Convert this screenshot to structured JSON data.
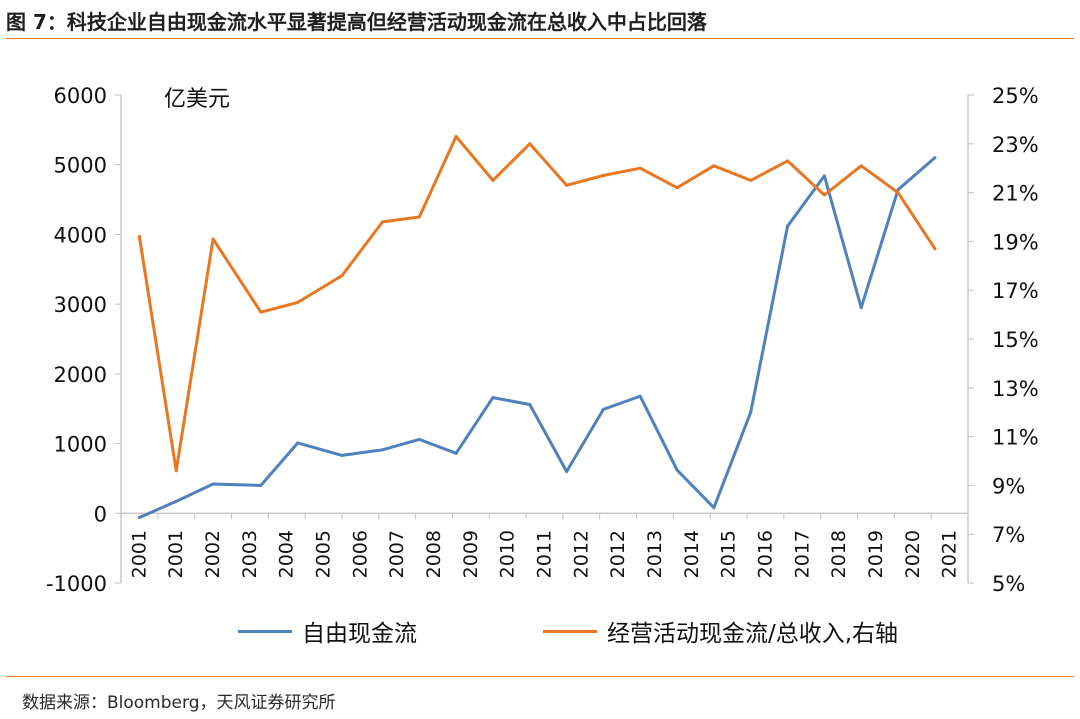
{
  "figure": {
    "title": "图 7：科技企业自由现金流水平显著提高但经营活动现金流在总收入中占比回落",
    "source": "数据来源：Bloomberg，天风证券研究所"
  },
  "chart_data": {
    "type": "line",
    "title": "",
    "unit_label": "亿美元",
    "xlabel": "",
    "ylabel": "",
    "categories": [
      "2001",
      "2001",
      "2002",
      "2003",
      "2004",
      "2005",
      "2006",
      "2007",
      "2008",
      "2009",
      "2010",
      "2011",
      "2012",
      "2012",
      "2013",
      "2014",
      "2015",
      "2016",
      "2017",
      "2018",
      "2019",
      "2020",
      "2021"
    ],
    "y_left": {
      "lim": [
        -1000,
        6000
      ],
      "ticks": [
        -1000,
        0,
        1000,
        2000,
        3000,
        4000,
        5000,
        6000
      ]
    },
    "y_right": {
      "lim": [
        5,
        25
      ],
      "ticks": [
        5,
        7,
        9,
        11,
        13,
        15,
        17,
        19,
        21,
        23,
        25
      ],
      "tick_suffix": "%"
    },
    "series": [
      {
        "name": "自由现金流",
        "axis": "left",
        "color": "#4f81bd",
        "points": [
          [
            0.0,
            -60
          ],
          [
            1.0,
            170
          ],
          [
            2.0,
            420
          ],
          [
            3.3,
            400
          ],
          [
            4.3,
            1010
          ],
          [
            5.5,
            830
          ],
          [
            6.6,
            910
          ],
          [
            7.6,
            1060
          ],
          [
            8.6,
            860
          ],
          [
            9.6,
            1660
          ],
          [
            10.6,
            1560
          ],
          [
            11.6,
            600
          ],
          [
            12.6,
            1490
          ],
          [
            13.6,
            1680
          ],
          [
            14.6,
            620
          ],
          [
            15.6,
            80
          ],
          [
            16.6,
            1450
          ],
          [
            17.6,
            4120
          ],
          [
            18.6,
            4840
          ],
          [
            19.6,
            2950
          ],
          [
            20.6,
            4640
          ],
          [
            21.6,
            5100
          ]
        ]
      },
      {
        "name": "经营活动现金流/总收入,右轴",
        "axis": "right",
        "color": "#e87722",
        "points": [
          [
            0.0,
            19.2
          ],
          [
            1.0,
            9.6
          ],
          [
            2.0,
            19.1
          ],
          [
            3.3,
            16.1
          ],
          [
            4.3,
            16.5
          ],
          [
            5.5,
            17.6
          ],
          [
            6.6,
            19.8
          ],
          [
            7.6,
            20.0
          ],
          [
            8.6,
            23.3
          ],
          [
            9.6,
            21.5
          ],
          [
            10.6,
            23.0
          ],
          [
            11.6,
            21.3
          ],
          [
            12.6,
            21.7
          ],
          [
            13.6,
            22.0
          ],
          [
            14.6,
            21.2
          ],
          [
            15.6,
            22.1
          ],
          [
            16.6,
            21.5
          ],
          [
            17.6,
            22.3
          ],
          [
            18.6,
            20.9
          ],
          [
            19.6,
            22.1
          ],
          [
            20.6,
            21.0
          ],
          [
            21.6,
            18.7
          ]
        ]
      }
    ],
    "legend_position": "bottom",
    "grid": false
  }
}
